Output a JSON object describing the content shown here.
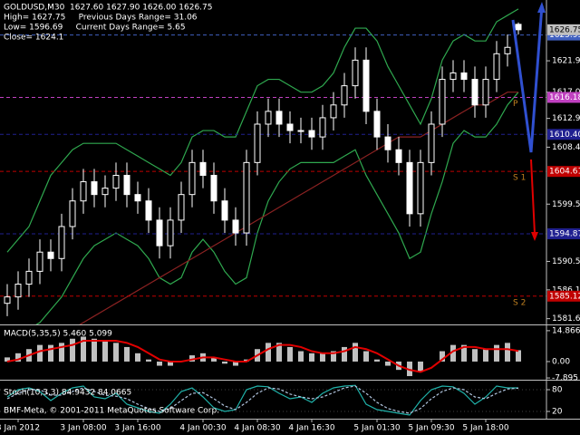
{
  "chart_data": [
    {
      "type": "candlestick",
      "title": "GOLDUSD,M30",
      "info": [
        "GOLDUSD,M30  1627.60 1627.90 1626.00 1626.75",
        "High= 1627.75     Previous Days Range= 31.06",
        "Low= 1596.69     Current Days Range= 5.65",
        "Close= 1624.1"
      ],
      "open": [
        1584,
        1585,
        1587,
        1589,
        1592,
        1591,
        1596,
        1600,
        1603,
        1601,
        1602,
        1604,
        1601,
        1600,
        1597,
        1593,
        1597,
        1601,
        1606,
        1604,
        1600,
        1597,
        1595,
        1606,
        1612,
        1614,
        1612,
        1611,
        1611,
        1610,
        1613,
        1615,
        1618,
        1622,
        1614,
        1610,
        1608,
        1606,
        1598,
        1606,
        1612,
        1619,
        1620,
        1619,
        1615,
        1619,
        1623,
        1627.6
      ],
      "high": [
        1587,
        1589,
        1591,
        1594,
        1594,
        1598,
        1602,
        1605,
        1605,
        1604,
        1606,
        1606,
        1603,
        1602,
        1599,
        1599,
        1603,
        1608,
        1608,
        1606,
        1602,
        1599,
        1608,
        1614,
        1616,
        1616,
        1614,
        1613,
        1613,
        1615,
        1617,
        1620,
        1624,
        1624,
        1616,
        1612,
        1610,
        1608,
        1608,
        1614,
        1621,
        1622,
        1622,
        1621,
        1621,
        1625,
        1626,
        1627.9
      ],
      "low": [
        1582,
        1583,
        1585,
        1587,
        1589,
        1589,
        1594,
        1598,
        1599,
        1599,
        1600,
        1599,
        1598,
        1595,
        1591,
        1591,
        1595,
        1599,
        1602,
        1598,
        1595,
        1593,
        1593,
        1604,
        1610,
        1610,
        1609,
        1609,
        1608,
        1608,
        1611,
        1613,
        1616,
        1612,
        1608,
        1606,
        1604,
        1596,
        1596,
        1604,
        1610,
        1617,
        1617,
        1613,
        1613,
        1617,
        1621,
        1626
      ],
      "close": [
        1585,
        1587,
        1589,
        1592,
        1591,
        1596,
        1600,
        1603,
        1601,
        1602,
        1604,
        1601,
        1600,
        1597,
        1593,
        1597,
        1601,
        1606,
        1604,
        1600,
        1597,
        1595,
        1606,
        1612,
        1614,
        1612,
        1611,
        1611,
        1610,
        1613,
        1615,
        1618,
        1622,
        1614,
        1610,
        1608,
        1606,
        1598,
        1606,
        1612,
        1619,
        1620,
        1619,
        1615,
        1619,
        1623,
        1624,
        1626.75
      ],
      "overlays": [
        {
          "color": "#2fa84f",
          "values": [
            1592,
            1594,
            1596,
            1600,
            1604,
            1606,
            1608,
            1609,
            1609,
            1609,
            1609,
            1608,
            1607,
            1606,
            1605,
            1604,
            1606,
            1610,
            1611,
            1611,
            1610,
            1610,
            1614,
            1618,
            1619,
            1619,
            1618,
            1617,
            1617,
            1618,
            1620,
            1624,
            1627,
            1627,
            1625,
            1621,
            1618,
            1615,
            1612,
            1616,
            1622,
            1625,
            1626,
            1625,
            1625,
            1628,
            1629,
            1630
          ]
        },
        {
          "color": "#2fa84f",
          "values": [
            1578,
            1579,
            1580,
            1581,
            1583,
            1585,
            1588,
            1591,
            1593,
            1594,
            1595,
            1594,
            1593,
            1591,
            1588,
            1587,
            1588,
            1592,
            1594,
            1592,
            1589,
            1587,
            1588,
            1595,
            1600,
            1603,
            1605,
            1606,
            1606,
            1606,
            1606,
            1607,
            1608,
            1604,
            1601,
            1598,
            1595,
            1591,
            1592,
            1598,
            1603,
            1609,
            1611,
            1610,
            1610,
            1612,
            1615,
            1617
          ]
        },
        {
          "color": "#8b2222",
          "values": [
            1574,
            1575,
            1576,
            1577,
            1578,
            1579,
            1580,
            1581,
            1582,
            1583,
            1584,
            1585,
            1586,
            1587,
            1588,
            1589,
            1590,
            1591,
            1592,
            1593,
            1594,
            1595,
            1596,
            1597,
            1598,
            1599,
            1600,
            1601,
            1602,
            1603,
            1604,
            1605,
            1606,
            1607,
            1608,
            1609,
            1610,
            1610,
            1610,
            1611,
            1612,
            1613,
            1614,
            1615,
            1615,
            1616,
            1617,
            1617
          ]
        }
      ],
      "levels": [
        {
          "value": 1625.93,
          "color": "#4060c0"
        },
        {
          "value": 1616.18,
          "color": "#c040c0",
          "tag": "P"
        },
        {
          "value": {
            "value": 1610.4,
            "label": "1610.40"
          },
          "color": "#202090"
        },
        {
          "value": 1604.61,
          "color": "#c00000",
          "tag": "S 1"
        },
        {
          "value": 1594.87,
          "color": "#202090"
        },
        {
          "value": 1585.12,
          "color": "#c00000",
          "tag": "S 2"
        }
      ],
      "ylim": [
        1580.7,
        1631.4
      ],
      "yticks": [
        {
          "value": 1621.9,
          "label": "1621.90"
        },
        {
          "value": 1617,
          "label": "1617.00"
        },
        {
          "value": 1612.9,
          "label": "1612.90"
        },
        {
          "value": 1608.4,
          "label": "1608.40"
        },
        {
          "value": 1599.5,
          "label": "1599.50"
        },
        1590.55,
        {
          "value": 1586.1,
          "label": "1586.10"
        },
        {
          "value": 1581.6,
          "label": "1581.60"
        }
      ]
    },
    {
      "type": "bar",
      "title": "MACD(5,35,5) 5.460 5.099",
      "series": [
        {
          "type": "bar",
          "color": "#c0c0c0",
          "values": [
            2,
            4,
            6,
            8,
            8,
            9,
            11,
            12,
            11,
            10,
            9,
            7,
            4,
            1,
            -2,
            -2,
            0,
            3,
            4,
            2,
            -1,
            -2,
            1,
            6,
            9,
            9,
            7,
            5,
            4,
            4,
            5,
            7,
            9,
            5,
            1,
            -2,
            -4,
            -7,
            -5,
            0,
            5,
            8,
            8,
            6,
            6,
            8,
            9,
            5.46
          ]
        },
        {
          "type": "line",
          "color": "#e00000",
          "values": [
            0,
            1,
            3,
            5,
            6,
            7,
            8,
            10,
            10,
            10,
            10,
            9,
            7,
            4,
            1,
            0,
            0,
            1,
            2,
            2,
            1,
            0,
            0,
            3,
            6,
            8,
            8,
            7,
            5,
            4,
            4,
            5,
            7,
            6,
            4,
            1,
            -2,
            -4,
            -5,
            -3,
            1,
            5,
            7,
            7,
            6,
            6,
            6,
            5.099
          ]
        }
      ],
      "ylim": [
        -8.3,
        17
      ],
      "yticks": [
        14.866,
        {
          "value": 0,
          "label": "0.00"
        },
        -7.895
      ]
    },
    {
      "type": "line",
      "title": "Stoch(10,3,3) 84.9432 84.0665",
      "copyright": "BMF-Meta, © 2001-2011 MetaQuotes Software Corp.",
      "categories": [
        null,
        "3 Jan 2012",
        null,
        null,
        null,
        null,
        null,
        "3 Jan 08:00",
        null,
        null,
        null,
        null,
        "3 Jan 16:00",
        null,
        null,
        null,
        null,
        null,
        "4 Jan 00:30",
        null,
        null,
        null,
        null,
        "4 Jan 08:30",
        null,
        null,
        null,
        null,
        "4 Jan 16:30",
        null,
        null,
        null,
        null,
        null,
        "5 Jan 01:30",
        null,
        null,
        null,
        null,
        "5 Jan 09:30",
        null,
        null,
        null,
        null,
        "5 Jan 18:00",
        null,
        null,
        null
      ],
      "series": [
        {
          "color": "#20b2aa",
          "dash": false,
          "values": [
            60,
            80,
            85,
            75,
            50,
            70,
            85,
            90,
            60,
            55,
            70,
            40,
            30,
            20,
            15,
            40,
            75,
            85,
            60,
            30,
            20,
            25,
            80,
            90,
            88,
            70,
            55,
            60,
            45,
            70,
            85,
            90,
            92,
            40,
            25,
            20,
            15,
            10,
            50,
            80,
            90,
            88,
            70,
            40,
            60,
            90,
            85,
            84.9432
          ]
        },
        {
          "color": "#b0c4de",
          "dash": true,
          "values": [
            55,
            70,
            80,
            80,
            65,
            65,
            75,
            85,
            75,
            65,
            62,
            55,
            40,
            28,
            20,
            28,
            50,
            70,
            72,
            55,
            35,
            25,
            45,
            70,
            85,
            82,
            68,
            60,
            55,
            60,
            72,
            85,
            90,
            70,
            45,
            28,
            20,
            15,
            28,
            55,
            75,
            85,
            80,
            60,
            55,
            70,
            82,
            84.0665
          ]
        }
      ],
      "ylim": [
        0,
        100
      ],
      "yticks": [
        80,
        20
      ]
    }
  ]
}
